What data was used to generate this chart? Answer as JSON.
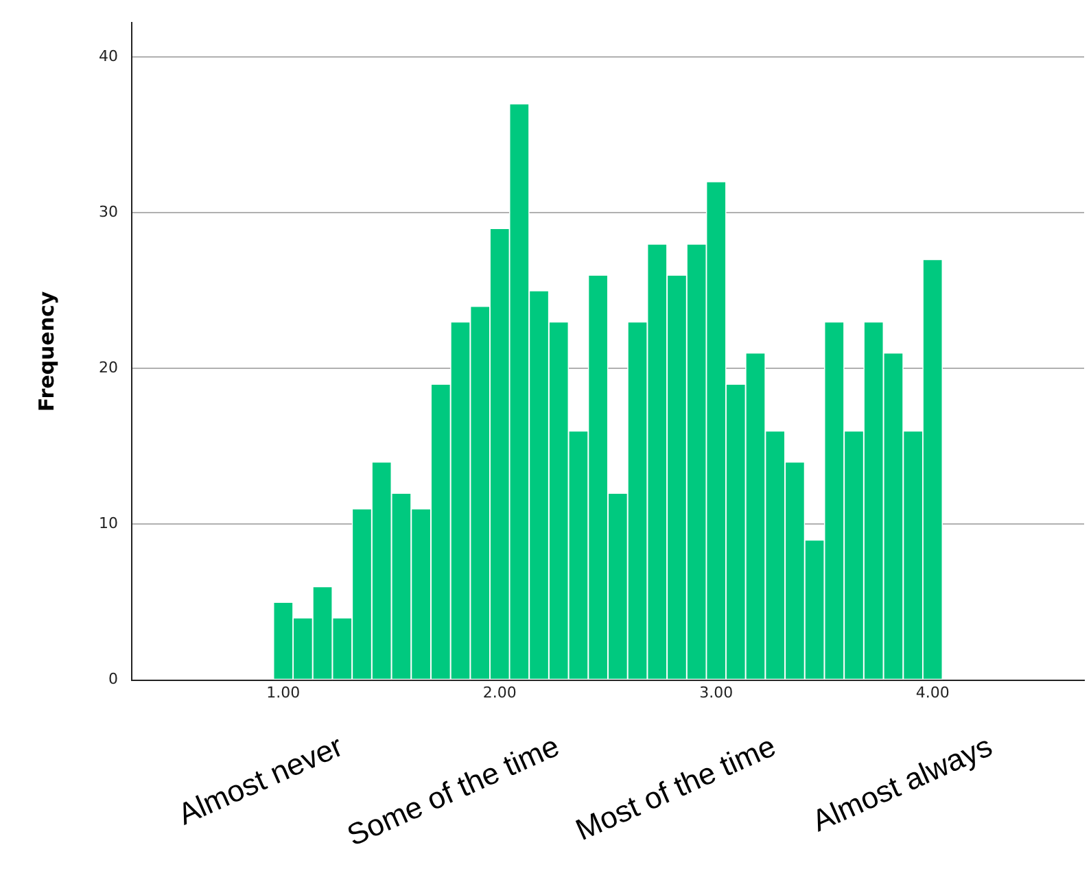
{
  "chart_data": {
    "type": "histogram",
    "ylabel": "Frequency",
    "bins": [
      0.955,
      1.045,
      1.136,
      1.227,
      1.318,
      1.409,
      1.5,
      1.591,
      1.682,
      1.773,
      1.864,
      1.955,
      2.045,
      2.136,
      2.227,
      2.318,
      2.409,
      2.5,
      2.591,
      2.682,
      2.773,
      2.864,
      2.955,
      3.045,
      3.136,
      3.227,
      3.318,
      3.409,
      3.5,
      3.591,
      3.682,
      3.773,
      3.864,
      3.955,
      4.045
    ],
    "values": [
      5,
      4,
      6,
      4,
      11,
      14,
      12,
      11,
      19,
      23,
      24,
      29,
      37,
      25,
      23,
      16,
      26,
      12,
      23,
      28,
      26,
      28,
      32,
      19,
      21,
      16,
      14,
      9,
      23,
      16,
      23,
      21,
      16,
      27
    ],
    "color": "#00c97f",
    "xlim": [
      0.3,
      4.7
    ],
    "xticks": [
      {
        "value": 1,
        "label": "1.00"
      },
      {
        "value": 2,
        "label": "2.00"
      },
      {
        "value": 3,
        "label": "3.00"
      },
      {
        "value": 4,
        "label": "4.00"
      }
    ],
    "ylim": [
      0,
      42.2
    ],
    "yticks": [
      0,
      10,
      20,
      30,
      40
    ],
    "grid": "y",
    "legend": false,
    "annotations": [
      "Almost never",
      "Some of the time",
      "Most of the time",
      "Almost always"
    ]
  }
}
